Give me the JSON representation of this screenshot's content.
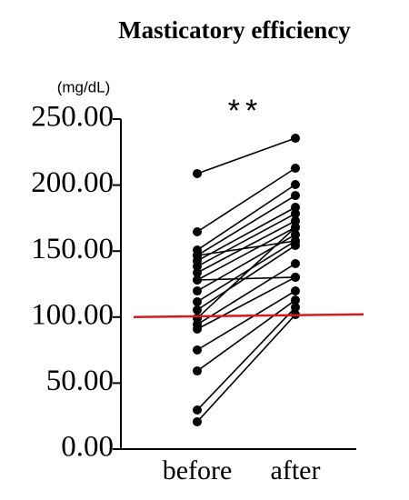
{
  "chart_data": {
    "type": "paired-line",
    "title": "Masticatory efficiency",
    "y_label": "(mg/dL)",
    "annotation": "**",
    "categories": [
      "before",
      "after"
    ],
    "ylim": [
      0,
      250
    ],
    "yticks": [
      {
        "value": 0,
        "label": "0.00"
      },
      {
        "value": 50,
        "label": "50.00"
      },
      {
        "value": 100,
        "label": "100.00"
      },
      {
        "value": 150,
        "label": "150.00"
      },
      {
        "value": 200,
        "label": "200.00"
      },
      {
        "value": 250,
        "label": "250.00"
      }
    ],
    "reference_line": {
      "value": 100,
      "color": "#d7191c"
    },
    "color": "#000000",
    "series": [
      {
        "values": [
          208.7,
          235.5
        ]
      },
      {
        "values": [
          164.6,
          212.8
        ]
      },
      {
        "values": [
          150.8,
          200.4
        ]
      },
      {
        "values": [
          146.7,
          192.1
        ]
      },
      {
        "values": [
          142.6,
          183.2
        ]
      },
      {
        "values": [
          138.4,
          178.4
        ]
      },
      {
        "values": [
          133.6,
          172.9
        ]
      },
      {
        "values": [
          128.1,
          168.0
        ]
      },
      {
        "values": [
          119.8,
          162.5
        ]
      },
      {
        "values": [
          111.6,
          157.7
        ]
      },
      {
        "values": [
          105.4,
          154.3
        ]
      },
      {
        "values": [
          99.2,
          168.0
        ]
      },
      {
        "values": [
          94.4,
          140.5
        ]
      },
      {
        "values": [
          90.9,
          130.2
        ]
      },
      {
        "values": [
          75.1,
          119.8
        ]
      },
      {
        "values": [
          59.2,
          112.9
        ]
      },
      {
        "values": [
          29.6,
          107.4
        ]
      },
      {
        "values": [
          20.7,
          101.9
        ]
      },
      {
        "values": [
          146.7,
          157.7
        ]
      },
      {
        "values": [
          128.1,
          130.2
        ]
      }
    ]
  }
}
